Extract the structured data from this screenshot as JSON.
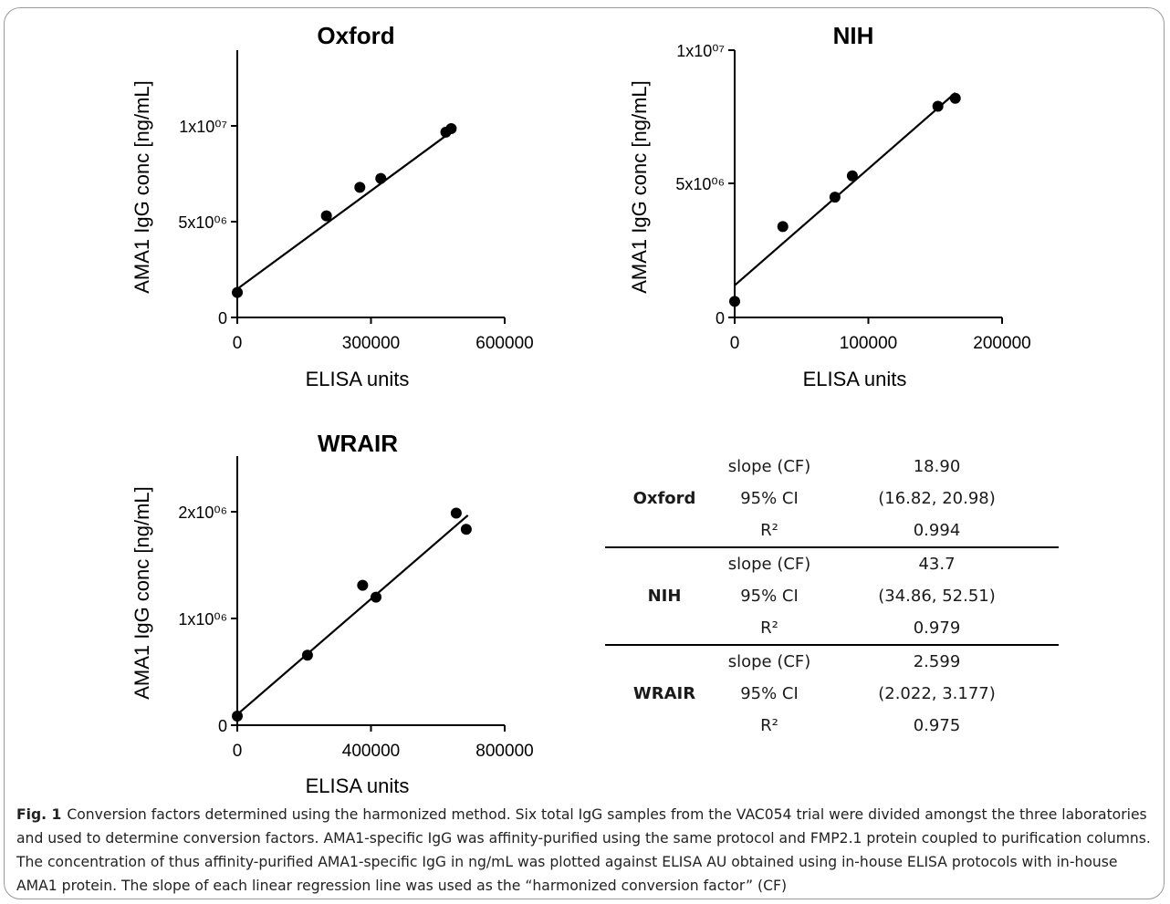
{
  "charts": [
    {
      "title": "Oxford",
      "ylabel": "AMA1 IgG conc [ng/mL]",
      "xlabel": "ELISA units",
      "xticks": [
        "0",
        "300000",
        "600000"
      ],
      "yticks": [
        "0",
        "5x10⁰⁶",
        "1x10⁰⁷"
      ]
    },
    {
      "title": "NIH",
      "ylabel": "AMA1 IgG conc [ng/mL]",
      "xlabel": "ELISA units",
      "xticks": [
        "0",
        "100000",
        "200000"
      ],
      "yticks": [
        "0",
        "5x10⁰⁶",
        "1x10⁰⁷"
      ]
    },
    {
      "title": "WRAIR",
      "ylabel": "AMA1 IgG conc [ng/mL]",
      "xlabel": "ELISA units",
      "xticks": [
        "0",
        "400000",
        "800000"
      ],
      "yticks": [
        "0",
        "1x10⁰⁶",
        "2x10⁰⁶"
      ]
    }
  ],
  "chart_data": [
    {
      "type": "scatter",
      "title": "Oxford",
      "xlabel": "ELISA units",
      "ylabel": "AMA1 IgG conc [ng/mL]",
      "xlim": [
        0,
        600000
      ],
      "ylim": [
        0,
        15000000
      ],
      "x": [
        0,
        200000,
        275000,
        322000,
        468000,
        480000
      ],
      "y": [
        1400000,
        5700000,
        7300000,
        7800000,
        10400000,
        10600000
      ],
      "fit_line": [
        [
          0,
          1600000
        ],
        [
          490000,
          10600000
        ]
      ]
    },
    {
      "type": "scatter",
      "title": "NIH",
      "xlabel": "ELISA units",
      "xlim": [
        0,
        200000
      ],
      "ylim": [
        0,
        10000000
      ],
      "x": [
        0,
        36000,
        75000,
        88000,
        152000,
        165000
      ],
      "y": [
        600000,
        3400000,
        4500000,
        5300000,
        7900000,
        8200000
      ],
      "fit_line": [
        [
          0,
          1200000
        ],
        [
          165000,
          8400000
        ]
      ]
    },
    {
      "type": "scatter",
      "title": "WRAIR",
      "xlabel": "ELISA units",
      "ylabel": "AMA1 IgG conc [ng/mL]",
      "xlim": [
        0,
        800000
      ],
      "ylim": [
        0,
        2500000
      ],
      "x": [
        0,
        210000,
        375000,
        415000,
        655000,
        685000
      ],
      "y": [
        85000,
        650000,
        1300000,
        1190000,
        1970000,
        1820000
      ],
      "fit_line": [
        [
          0,
          100000
        ],
        [
          690000,
          1950000
        ]
      ]
    }
  ],
  "table": [
    {
      "lab": "Oxford",
      "rows": [
        {
          "metric": "slope (CF)",
          "value": "18.90"
        },
        {
          "metric": "95% CI",
          "value": "(16.82, 20.98)"
        },
        {
          "metric": "R²",
          "value": "0.994"
        }
      ]
    },
    {
      "lab": "NIH",
      "rows": [
        {
          "metric": "slope (CF)",
          "value": "43.7"
        },
        {
          "metric": "95% CI",
          "value": "(34.86, 52.51)"
        },
        {
          "metric": "R²",
          "value": "0.979"
        }
      ]
    },
    {
      "lab": "WRAIR",
      "rows": [
        {
          "metric": "slope (CF)",
          "value": "2.599"
        },
        {
          "metric": "95% CI",
          "value": "(2.022, 3.177)"
        },
        {
          "metric": "R²",
          "value": "0.975"
        }
      ]
    }
  ],
  "caption": {
    "label": "Fig. 1",
    "text": "Conversion factors determined using the harmonized method. Six total IgG samples from the VAC054 trial were divided amongst the three laboratories and used to determine conversion factors. AMA1-specific IgG was affinity-purified using the same protocol and FMP2.1 protein coupled to purification columns. The concentration of thus affinity-purified AMA1-specific IgG in ng/mL was plotted against ELISA AU obtained using in-house ELISA protocols with in-house AMA1 protein. The slope of each linear regression line was used as the “harmonized conversion factor” (CF)"
  }
}
